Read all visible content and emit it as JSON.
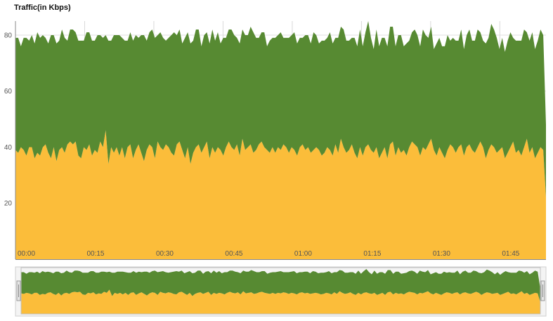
{
  "chart_data": {
    "type": "area",
    "stacked": true,
    "title": "Traffic(in Kbps)",
    "ylim": [
      0,
      85
    ],
    "y_ticks": [
      20,
      40,
      60,
      80
    ],
    "x_tick_labels": [
      "00:00",
      "00:15",
      "00:30",
      "00:45",
      "01:00",
      "01:15",
      "01:30",
      "01:45"
    ],
    "x_minutes_start": 0,
    "x_minutes_end": 115,
    "grid": true,
    "series": [
      {
        "color": "#fbbd3a",
        "values": [
          39,
          38,
          40,
          39,
          37,
          40,
          40,
          36,
          38,
          37,
          40,
          41,
          38,
          36,
          40,
          35,
          39,
          40,
          38,
          41,
          42,
          41,
          42,
          37,
          36,
          40,
          39,
          41,
          37,
          39,
          38,
          42,
          40,
          46,
          34,
          40,
          38,
          40,
          37,
          40,
          36,
          40,
          41,
          36,
          39,
          41,
          38,
          35,
          39,
          41,
          40,
          36,
          42,
          40,
          39,
          41,
          40,
          38,
          37,
          41,
          42,
          39,
          36,
          40,
          34,
          38,
          40,
          41,
          38,
          40,
          42,
          36,
          40,
          38,
          40,
          39,
          37,
          40,
          42,
          40,
          39,
          41,
          37,
          43,
          39,
          40,
          41,
          38,
          39,
          41,
          42,
          40,
          39,
          38,
          40,
          38,
          40,
          39,
          41,
          40,
          38,
          40,
          39,
          37,
          40,
          41,
          39,
          40,
          38,
          39,
          40,
          39,
          37,
          38,
          40,
          39,
          37,
          41,
          38,
          43,
          40,
          38,
          39,
          41,
          38,
          36,
          40,
          37,
          40,
          41,
          39,
          38,
          40,
          36,
          38,
          40,
          36,
          41,
          42,
          37,
          40,
          38,
          39,
          37,
          40,
          42,
          41,
          40,
          37,
          40,
          39,
          41,
          43,
          39,
          37,
          40,
          38,
          36,
          39,
          41,
          40,
          38,
          40,
          41,
          37,
          40,
          41,
          39,
          38,
          40,
          42,
          40,
          36,
          39,
          41,
          40,
          38,
          39,
          40,
          36,
          38,
          40,
          42,
          38,
          39,
          37,
          40,
          43,
          38,
          40,
          36,
          38,
          40,
          39,
          22
        ]
      },
      {
        "color": "#578a32",
        "values": [
          40,
          41,
          36,
          40,
          42,
          38,
          40,
          41,
          43,
          42,
          40,
          38,
          39,
          44,
          40,
          42,
          39,
          42,
          41,
          37,
          40,
          41,
          39,
          41,
          42,
          38,
          42,
          40,
          41,
          39,
          42,
          38,
          39,
          34,
          44,
          38,
          42,
          40,
          43,
          39,
          42,
          38,
          40,
          42,
          41,
          38,
          42,
          45,
          39,
          40,
          42,
          43,
          38,
          41,
          40,
          37,
          39,
          42,
          44,
          39,
          40,
          38,
          43,
          41,
          43,
          40,
          42,
          41,
          38,
          40,
          39,
          41,
          42,
          40,
          41,
          38,
          42,
          39,
          40,
          42,
          41,
          38,
          40,
          39,
          41,
          40,
          42,
          43,
          40,
          38,
          39,
          41,
          37,
          40,
          39,
          41,
          40,
          42,
          38,
          39,
          41,
          40,
          42,
          40,
          39,
          38,
          41,
          40,
          39,
          42,
          40,
          38,
          41,
          40,
          39,
          42,
          40,
          38,
          41,
          40,
          42,
          40,
          39,
          38,
          41,
          40,
          42,
          39,
          41,
          44,
          40,
          37,
          42,
          40,
          41,
          39,
          40,
          42,
          41,
          39,
          40,
          42,
          37,
          40,
          38,
          39,
          41,
          40,
          39,
          42,
          41,
          38,
          40,
          36,
          40,
          39,
          38,
          40,
          41,
          37,
          39,
          40,
          38,
          41,
          38,
          40,
          41,
          39,
          40,
          42,
          39,
          38,
          41,
          40,
          43,
          42,
          41,
          36,
          39,
          38,
          40,
          41,
          37,
          40,
          39,
          41,
          42,
          38,
          40,
          41,
          39,
          40,
          42,
          41,
          26
        ]
      }
    ]
  }
}
